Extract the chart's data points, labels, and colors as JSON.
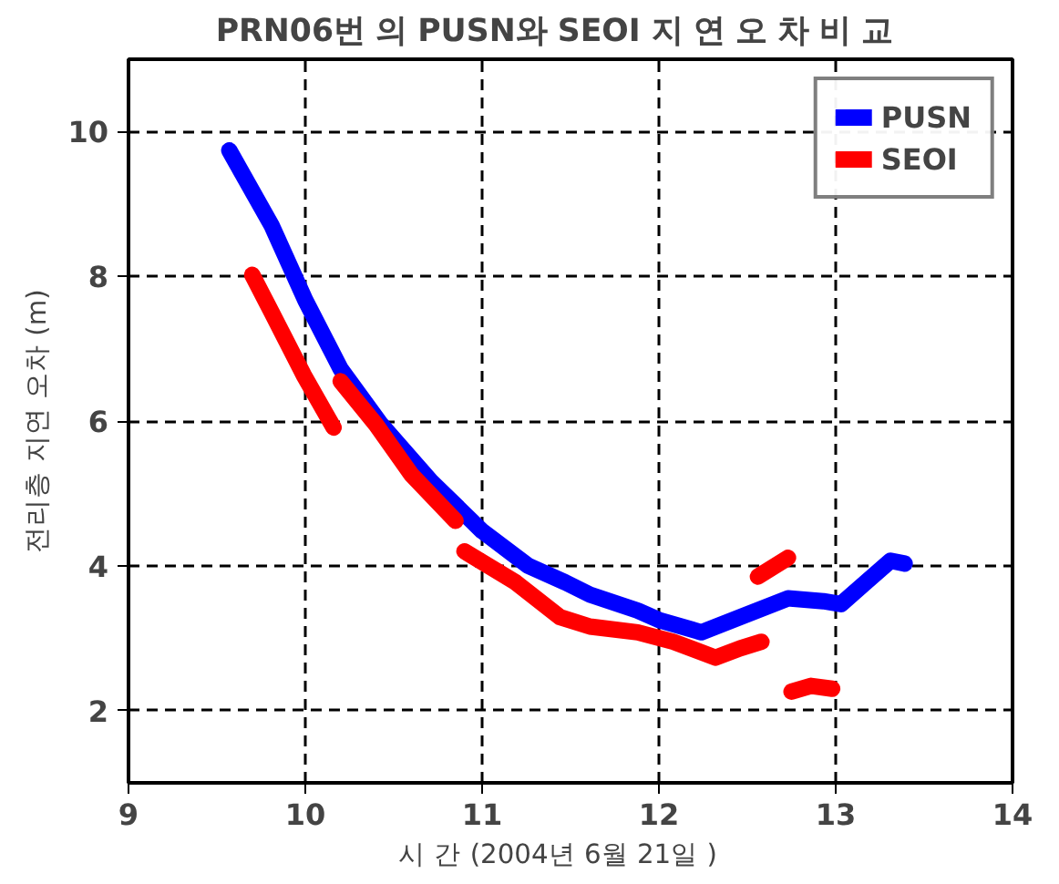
{
  "chart_data": {
    "type": "line",
    "title": "PRN06번 의  PUSN와  SEOI 지 연 오 차  비 교",
    "xlabel": "시 간  (2004년  6월  21일 )",
    "ylabel": "전리층 지연 오차 (m)",
    "xlim": [
      9,
      14
    ],
    "ylim": [
      1,
      11
    ],
    "xticks": [
      9,
      10,
      11,
      12,
      13,
      14
    ],
    "yticks": [
      2,
      4,
      6,
      8,
      10
    ],
    "grid": true,
    "legend": "top right",
    "line_style": "solid",
    "marker": "none",
    "series": [
      {
        "name": "PUSN",
        "color": "#0000ff",
        "x": [
          9.57,
          9.81,
          10.0,
          10.2,
          10.43,
          10.71,
          11.0,
          11.26,
          11.47,
          11.61,
          11.88,
          12.0,
          12.24,
          12.46,
          12.73,
          12.93,
          13.03,
          13.17,
          13.31,
          13.39
        ],
        "values": [
          9.74,
          8.7,
          7.67,
          6.72,
          5.95,
          5.17,
          4.48,
          4.0,
          3.77,
          3.6,
          3.38,
          3.25,
          3.08,
          3.29,
          3.55,
          3.51,
          3.47,
          3.77,
          4.07,
          4.03
        ]
      },
      {
        "name": "SEOI",
        "color": "#ff0000",
        "x": [
          9.7,
          9.81,
          9.99,
          10.16,
          null,
          10.2,
          10.4,
          10.6,
          10.85,
          null,
          10.9,
          11.19,
          11.44,
          11.61,
          11.88,
          12.08,
          12.32,
          12.46,
          12.58,
          null,
          12.56,
          12.73,
          null,
          12.75,
          12.86,
          12.98
        ],
        "values": [
          8.02,
          7.5,
          6.64,
          5.91,
          null,
          6.55,
          5.95,
          5.26,
          4.62,
          null,
          4.2,
          3.77,
          3.29,
          3.16,
          3.08,
          2.95,
          2.73,
          2.86,
          2.95,
          null,
          3.85,
          4.11,
          null,
          2.26,
          2.34,
          2.3
        ]
      }
    ]
  }
}
